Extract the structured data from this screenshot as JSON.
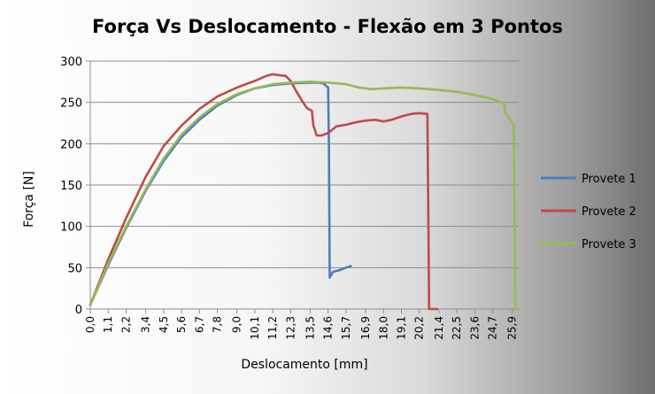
{
  "chart_data": {
    "type": "line",
    "title": "Força Vs Deslocamento - Flexão em 3 Pontos",
    "xlabel": "Deslocamento [mm]",
    "ylabel": "Força [N]",
    "ylim": [
      0,
      300
    ],
    "xlim": [
      0,
      26.3
    ],
    "yticks": [
      "0",
      "50",
      "100",
      "150",
      "200",
      "250",
      "300"
    ],
    "xticks": [
      "0,0",
      "1,1",
      "2,2",
      "3,4",
      "4,5",
      "5,6",
      "6,7",
      "7,8",
      "9,0",
      "10,1",
      "11,2",
      "12,3",
      "13,5",
      "14,6",
      "15,7",
      "16,9",
      "18,0",
      "19,1",
      "20,2",
      "21,4",
      "22,5",
      "23,6",
      "24,7",
      "25,9"
    ],
    "grid": true,
    "legend_position": "right",
    "series": [
      {
        "name": "Provete 1",
        "color": "#4a7ebb",
        "points": [
          [
            0.0,
            5
          ],
          [
            1.1,
            53
          ],
          [
            2.2,
            98
          ],
          [
            3.4,
            143
          ],
          [
            4.5,
            179
          ],
          [
            5.6,
            208
          ],
          [
            6.7,
            229
          ],
          [
            7.8,
            246
          ],
          [
            9.0,
            259
          ],
          [
            10.1,
            267
          ],
          [
            11.2,
            271
          ],
          [
            12.3,
            273
          ],
          [
            13.5,
            274
          ],
          [
            14.0,
            274
          ],
          [
            14.3,
            273
          ],
          [
            14.6,
            268
          ],
          [
            14.65,
            200
          ],
          [
            14.7,
            38
          ],
          [
            14.9,
            45
          ],
          [
            15.3,
            47
          ],
          [
            15.7,
            50
          ],
          [
            16.0,
            52
          ]
        ]
      },
      {
        "name": "Provete 2",
        "color": "#be4b48",
        "points": [
          [
            0.0,
            5
          ],
          [
            1.1,
            60
          ],
          [
            2.2,
            110
          ],
          [
            3.4,
            160
          ],
          [
            4.5,
            197
          ],
          [
            5.6,
            222
          ],
          [
            6.7,
            242
          ],
          [
            7.8,
            257
          ],
          [
            9.0,
            268
          ],
          [
            10.1,
            276
          ],
          [
            10.8,
            282
          ],
          [
            11.2,
            284
          ],
          [
            11.6,
            283
          ],
          [
            12.0,
            282
          ],
          [
            12.3,
            276
          ],
          [
            12.6,
            265
          ],
          [
            13.0,
            252
          ],
          [
            13.3,
            243
          ],
          [
            13.6,
            240
          ],
          [
            13.7,
            222
          ],
          [
            13.9,
            210
          ],
          [
            14.2,
            210
          ],
          [
            14.6,
            213
          ],
          [
            15.1,
            221
          ],
          [
            15.7,
            223
          ],
          [
            16.3,
            226
          ],
          [
            16.9,
            228
          ],
          [
            17.5,
            229
          ],
          [
            18.0,
            227
          ],
          [
            18.5,
            229
          ],
          [
            19.1,
            233
          ],
          [
            19.7,
            236
          ],
          [
            20.2,
            237
          ],
          [
            20.7,
            236
          ],
          [
            20.8,
            0
          ],
          [
            21.3,
            0
          ]
        ]
      },
      {
        "name": "Provete 3",
        "color": "#98b954",
        "points": [
          [
            0.0,
            5
          ],
          [
            1.1,
            55
          ],
          [
            2.2,
            100
          ],
          [
            3.4,
            145
          ],
          [
            4.5,
            182
          ],
          [
            5.6,
            211
          ],
          [
            6.7,
            232
          ],
          [
            7.8,
            248
          ],
          [
            9.0,
            260
          ],
          [
            10.1,
            267
          ],
          [
            11.2,
            272
          ],
          [
            12.3,
            274
          ],
          [
            13.5,
            275
          ],
          [
            14.6,
            274
          ],
          [
            15.7,
            272
          ],
          [
            16.5,
            268
          ],
          [
            17.3,
            266
          ],
          [
            18.0,
            267
          ],
          [
            19.1,
            268
          ],
          [
            20.2,
            267
          ],
          [
            21.4,
            265
          ],
          [
            22.5,
            263
          ],
          [
            23.6,
            259
          ],
          [
            24.7,
            254
          ],
          [
            25.4,
            249
          ],
          [
            25.5,
            236
          ],
          [
            25.7,
            232
          ],
          [
            25.9,
            225
          ],
          [
            26.0,
            222
          ],
          [
            26.1,
            0
          ],
          [
            26.3,
            0
          ]
        ]
      }
    ]
  }
}
